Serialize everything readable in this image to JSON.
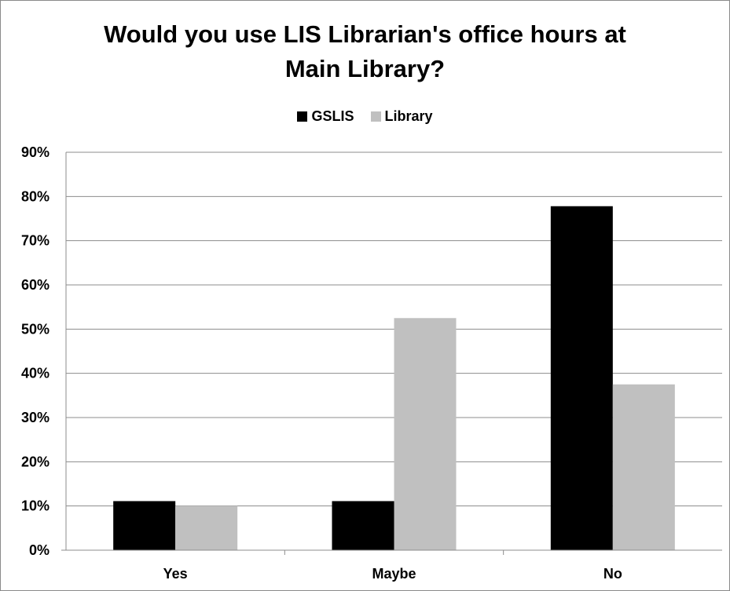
{
  "chart_data": {
    "type": "bar",
    "title": [
      "Would you use LIS Librarian's office hours at",
      "Main Library?"
    ],
    "categories": [
      "Yes",
      "Maybe",
      "No"
    ],
    "series": [
      {
        "name": "GSLIS",
        "color": "#000000",
        "values": [
          11.1,
          11.1,
          77.8
        ]
      },
      {
        "name": "Library",
        "color": "#c0c0c0",
        "values": [
          10,
          52.5,
          37.5
        ]
      }
    ],
    "ylim": [
      0,
      90
    ],
    "yticks": [
      0,
      10,
      20,
      30,
      40,
      50,
      60,
      70,
      80,
      90
    ],
    "ytick_labels": [
      "0%",
      "10%",
      "20%",
      "30%",
      "40%",
      "50%",
      "60%",
      "70%",
      "80%",
      "90%"
    ],
    "grid": true,
    "legend_position": "top-center"
  }
}
